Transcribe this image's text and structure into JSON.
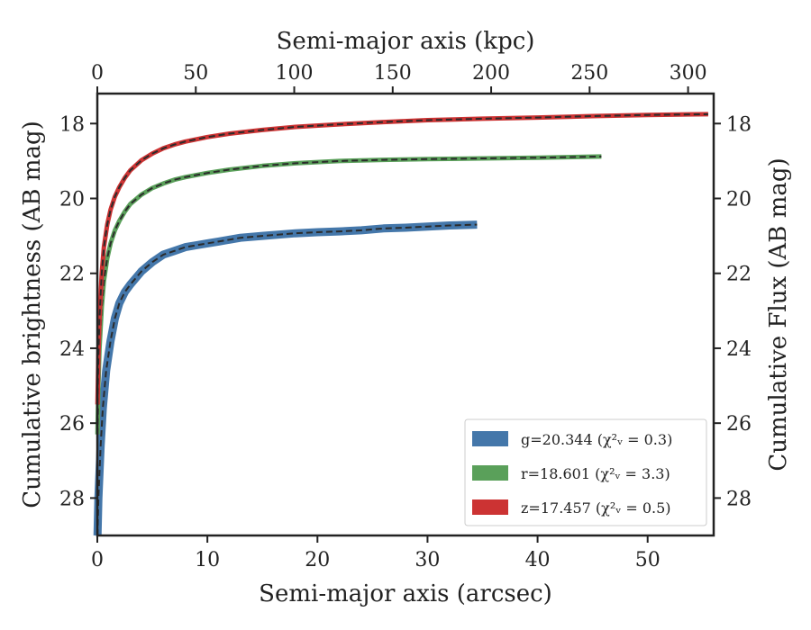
{
  "chart_data": {
    "type": "line",
    "xlabel": "Semi-major axis (arcsec)",
    "ylabel": "Cumulative brightness (AB mag)",
    "top_xlabel": "Semi-major axis (kpc)",
    "right_ylabel": "Cumulative Flux (AB mag)",
    "xlim": [
      0,
      56
    ],
    "ylim": [
      29,
      17.2
    ],
    "top_xlim": [
      0,
      313
    ],
    "y_inverted": true,
    "grid": false,
    "legend_position": "lower-right",
    "x_ticks": [
      "0",
      "10",
      "20",
      "30",
      "40",
      "50"
    ],
    "y_ticks": [
      "18",
      "20",
      "22",
      "24",
      "26",
      "28"
    ],
    "top_x_ticks": [
      "0",
      "50",
      "100",
      "150",
      "200",
      "250",
      "300"
    ],
    "series": [
      {
        "name": "g=20.344",
        "chi_label": "(χ²ᵥ = 0.3)",
        "color": "#4477aa",
        "x": [
          0.02,
          0.1,
          0.3,
          0.5,
          0.8,
          1.2,
          1.6,
          2.0,
          2.5,
          3.0,
          4.0,
          5.0,
          6.0,
          7.0,
          8.0,
          9.0,
          10.0,
          11.0,
          12.0,
          13.0,
          15.0,
          18.0,
          20.0,
          22.0,
          24.0,
          26.0,
          28.0,
          30.0,
          32.0,
          34.5
        ],
        "y": [
          29.0,
          28.0,
          26.6,
          25.6,
          24.6,
          23.8,
          23.2,
          22.8,
          22.5,
          22.3,
          21.95,
          21.7,
          21.5,
          21.4,
          21.3,
          21.25,
          21.2,
          21.15,
          21.1,
          21.05,
          21.0,
          20.93,
          20.9,
          20.88,
          20.85,
          20.8,
          20.78,
          20.75,
          20.72,
          20.7
        ]
      },
      {
        "name": "r=18.601",
        "chi_label": "(χ²ᵥ = 3.3)",
        "color": "#5aa05a",
        "x": [
          0.02,
          0.1,
          0.2,
          0.4,
          0.6,
          0.9,
          1.2,
          1.6,
          2.0,
          2.5,
          3.0,
          4.0,
          5.0,
          6.0,
          7.0,
          8.0,
          10.0,
          12.0,
          15.0,
          18.0,
          22.0,
          26.0,
          30.0,
          35.0,
          40.0,
          45.8
        ],
        "y": [
          26.3,
          25.0,
          24.0,
          22.9,
          22.2,
          21.6,
          21.2,
          20.85,
          20.6,
          20.35,
          20.15,
          19.9,
          19.72,
          19.6,
          19.5,
          19.43,
          19.32,
          19.23,
          19.13,
          19.06,
          19.0,
          18.97,
          18.95,
          18.93,
          18.91,
          18.88
        ]
      },
      {
        "name": "z=17.457",
        "chi_label": "(χ²ᵥ = 0.5)",
        "color": "#cc3333",
        "x": [
          0.02,
          0.1,
          0.2,
          0.4,
          0.6,
          0.9,
          1.2,
          1.6,
          2.0,
          2.5,
          3.0,
          4.0,
          5.0,
          6.0,
          7.0,
          8.0,
          10.0,
          12.0,
          15.0,
          18.0,
          22.0,
          26.0,
          30.0,
          35.0,
          40.0,
          45.0,
          50.0,
          55.5
        ],
        "y": [
          25.5,
          24.2,
          23.2,
          22.0,
          21.3,
          20.7,
          20.3,
          19.95,
          19.7,
          19.45,
          19.25,
          18.98,
          18.8,
          18.66,
          18.56,
          18.48,
          18.36,
          18.27,
          18.17,
          18.09,
          18.02,
          17.96,
          17.91,
          17.87,
          17.84,
          17.8,
          17.77,
          17.75
        ]
      }
    ]
  }
}
